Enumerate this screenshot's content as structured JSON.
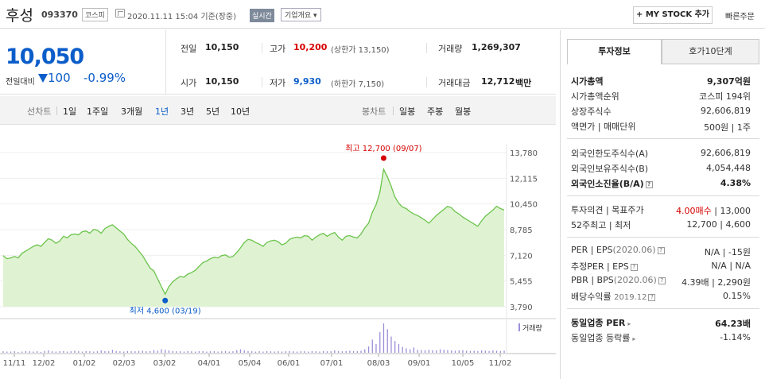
{
  "header": {
    "stock_name": "후성",
    "stock_code": "093370",
    "market": "코스피",
    "datetime": "2020.11.11 15:04 기준(장중)",
    "realtime_badge": "실시간",
    "overview_label": "기업개요",
    "overview_arrow": "▾",
    "mystock_label": "+ MY STOCK 추가",
    "quick_order": "빠른주문"
  },
  "price": {
    "current": "10,050",
    "compare_label": "전일대비",
    "change": "100",
    "change_pct": "-0.99%",
    "direction": "down"
  },
  "stats": {
    "prev_close_label": "전일",
    "prev_close": "10,150",
    "high_label": "고가",
    "high": "10,200",
    "upper_limit": "(상한가 13,150)",
    "volume_label": "거래량",
    "volume": "1,269,307",
    "open_label": "시가",
    "open": "10,150",
    "low_label": "저가",
    "low": "9,930",
    "lower_limit": "(하한가 7,150)",
    "amount_label": "거래대금",
    "amount": "12,712",
    "amount_unit": "백만"
  },
  "period": {
    "line_label": "선차트",
    "line_items": [
      "1일",
      "1주일",
      "3개월",
      "1년",
      "3년",
      "5년",
      "10년"
    ],
    "active": "1년",
    "candle_label": "봉차트",
    "candle_items": [
      "일봉",
      "주봉",
      "월봉"
    ]
  },
  "chart_data": {
    "type": "area",
    "x_ticks": [
      "11/11",
      "12/02",
      "01/02",
      "02/03",
      "03/02",
      "04/01",
      "05/04",
      "06/01",
      "07/01",
      "08/03",
      "09/01",
      "10/05",
      "11/02"
    ],
    "y_ticks": [
      "13,780",
      "12,115",
      "10,450",
      "8,785",
      "7,120",
      "5,455",
      "3,790"
    ],
    "ylim": [
      3790,
      13780
    ],
    "high_annotation": "최고 12,700 (09/07)",
    "low_annotation": "최저 4,600 (03/19)",
    "high_value": 12700,
    "low_value": 4600,
    "volume_label": "거래량",
    "price_series": [
      7100,
      6900,
      6950,
      7050,
      6950,
      7250,
      7400,
      7550,
      7700,
      7800,
      7700,
      7950,
      8200,
      8100,
      7900,
      8050,
      8350,
      8250,
      8450,
      8500,
      8450,
      8650,
      8700,
      8550,
      8800,
      8750,
      8550,
      8850,
      9000,
      9100,
      8900,
      8700,
      8500,
      8150,
      7900,
      7700,
      7400,
      7100,
      6700,
      6300,
      6100,
      5600,
      5100,
      4600,
      5100,
      5400,
      5600,
      5750,
      5700,
      5900,
      6000,
      6150,
      6400,
      6650,
      6750,
      6900,
      7000,
      6950,
      7100,
      7150,
      7000,
      7050,
      7300,
      7600,
      7950,
      8150,
      8100,
      7950,
      7850,
      7700,
      7950,
      8050,
      8100,
      8000,
      7800,
      7900,
      8150,
      8250,
      8300,
      8250,
      8400,
      8350,
      8100,
      8300,
      8450,
      8550,
      8350,
      8500,
      8600,
      8300,
      8100,
      8350,
      8400,
      8300,
      8250,
      8500,
      8900,
      9200,
      9900,
      10400,
      11200,
      12700,
      12200,
      11600,
      10900,
      10500,
      10250,
      10150,
      9950,
      9800,
      9700,
      9550,
      9400,
      9200,
      9450,
      9700,
      9900,
      10100,
      10300,
      10200,
      9950,
      9800,
      9600,
      9450,
      9300,
      9150,
      9000,
      9350,
      9650,
      9850,
      10050,
      10300,
      10150,
      10050
    ],
    "volume_series": [
      0.05,
      0.04,
      0.04,
      0.05,
      0.03,
      0.04,
      0.06,
      0.05,
      0.04,
      0.05,
      0.03,
      0.06,
      0.08,
      0.05,
      0.04,
      0.05,
      0.06,
      0.04,
      0.05,
      0.07,
      0.05,
      0.04,
      0.06,
      0.05,
      0.04,
      0.05,
      0.08,
      0.06,
      0.05,
      0.1,
      0.06,
      0.05,
      0.04,
      0.06,
      0.05,
      0.05,
      0.06,
      0.07,
      0.05,
      0.06,
      0.09,
      0.07,
      0.12,
      0.1,
      0.08,
      0.06,
      0.05,
      0.05,
      0.04,
      0.06,
      0.05,
      0.04,
      0.05,
      0.06,
      0.04,
      0.05,
      0.05,
      0.04,
      0.05,
      0.06,
      0.04,
      0.05,
      0.09,
      0.12,
      0.08,
      0.06,
      0.05,
      0.04,
      0.05,
      0.04,
      0.06,
      0.05,
      0.04,
      0.05,
      0.04,
      0.05,
      0.06,
      0.05,
      0.04,
      0.05,
      0.05,
      0.04,
      0.06,
      0.05,
      0.04,
      0.06,
      0.05,
      0.05,
      0.08,
      0.06,
      0.05,
      0.06,
      0.07,
      0.06,
      0.05,
      0.07,
      0.12,
      0.22,
      0.45,
      0.3,
      0.7,
      1.0,
      0.8,
      0.55,
      0.4,
      0.3,
      0.2,
      0.15,
      0.12,
      0.18,
      0.1,
      0.09,
      0.08,
      0.1,
      0.09,
      0.08,
      0.12,
      0.1,
      0.09,
      0.08,
      0.07,
      0.08,
      0.09,
      0.07,
      0.06,
      0.07,
      0.06,
      0.08,
      0.07,
      0.06,
      0.08,
      0.07,
      0.06,
      0.07
    ]
  },
  "tabs": {
    "info": "투자정보",
    "orderbook": "호가10단계"
  },
  "invest": {
    "mcap_label": "시가총액",
    "mcap": "9,307억원",
    "mcap_rank_label": "시가총액순위",
    "mcap_rank": "코스피 194위",
    "shares_label": "상장주식수",
    "shares": "92,606,819",
    "par_label": "액면가 | 매매단위",
    "par": "500원 | 1주",
    "foreign_limit_label": "외국인한도주식수(A)",
    "foreign_limit": "92,606,819",
    "foreign_hold_label": "외국인보유주식수(B)",
    "foreign_hold": "4,054,448",
    "foreign_ratio_label": "외국인소진율(B/A)",
    "foreign_ratio": "4.38%",
    "opinion_label": "투자의견 | 목표주가",
    "opinion": "4.00매수",
    "target": "| 13,000",
    "w52_label": "52주최고 | 최저",
    "w52": "12,700 | 4,600",
    "per_label": "PER | EPS",
    "per_date": "(2020.06)",
    "per": "N/A | -15원",
    "est_per_label": "추정PER | EPS",
    "est_per": "N/A | N/A",
    "pbr_label": "PBR | BPS",
    "pbr_date": "(2020.06)",
    "pbr": "4.39배 | 2,290원",
    "div_label": "배당수익률",
    "div_date": "2019.12",
    "div": "0.15%",
    "sector_per_label": "동일업종 PER",
    "sector_per": "64.23배",
    "sector_chg_label": "동일업종 등락률",
    "sector_chg": "-1.14%"
  },
  "colors": {
    "down": "#0b5dc9",
    "up": "#d60000",
    "area_fill": "#dff3d3",
    "area_line": "#6bc34a",
    "volume": "#9c8ed8"
  }
}
